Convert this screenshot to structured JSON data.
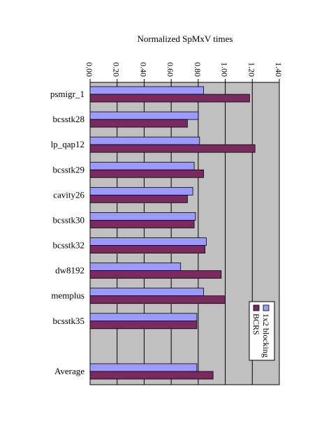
{
  "chart_data": {
    "type": "bar",
    "orientation": "horizontal",
    "title": "Normalized SpMxV times",
    "xlabel": "",
    "ylabel": "",
    "xlim": [
      0,
      1.4
    ],
    "xticks": [
      "0.00",
      "0.20",
      "0.40",
      "0.60",
      "0.80",
      "1.00",
      "1.20",
      "1.40"
    ],
    "grid": true,
    "legend_placement": "right",
    "categories": [
      "psmigr_1",
      "bcsstk28",
      "lp_qap12",
      "bcsstk29",
      "cavity26",
      "bcsstk30",
      "bcsstk32",
      "dw8192",
      "memplus",
      "bcsstk35",
      "",
      "Average"
    ],
    "series": [
      {
        "name": "1x2 blocking",
        "color": "#9a9aff",
        "values": [
          0.84,
          0.8,
          0.81,
          0.77,
          0.76,
          0.78,
          0.86,
          0.67,
          0.84,
          0.79,
          null,
          0.79
        ]
      },
      {
        "name": "BCRS",
        "color": "#7b2a60",
        "values": [
          1.18,
          0.72,
          1.22,
          0.84,
          0.72,
          0.77,
          0.85,
          0.97,
          1.0,
          0.79,
          null,
          0.91
        ]
      }
    ],
    "plot_background": "#c0c0c0"
  }
}
